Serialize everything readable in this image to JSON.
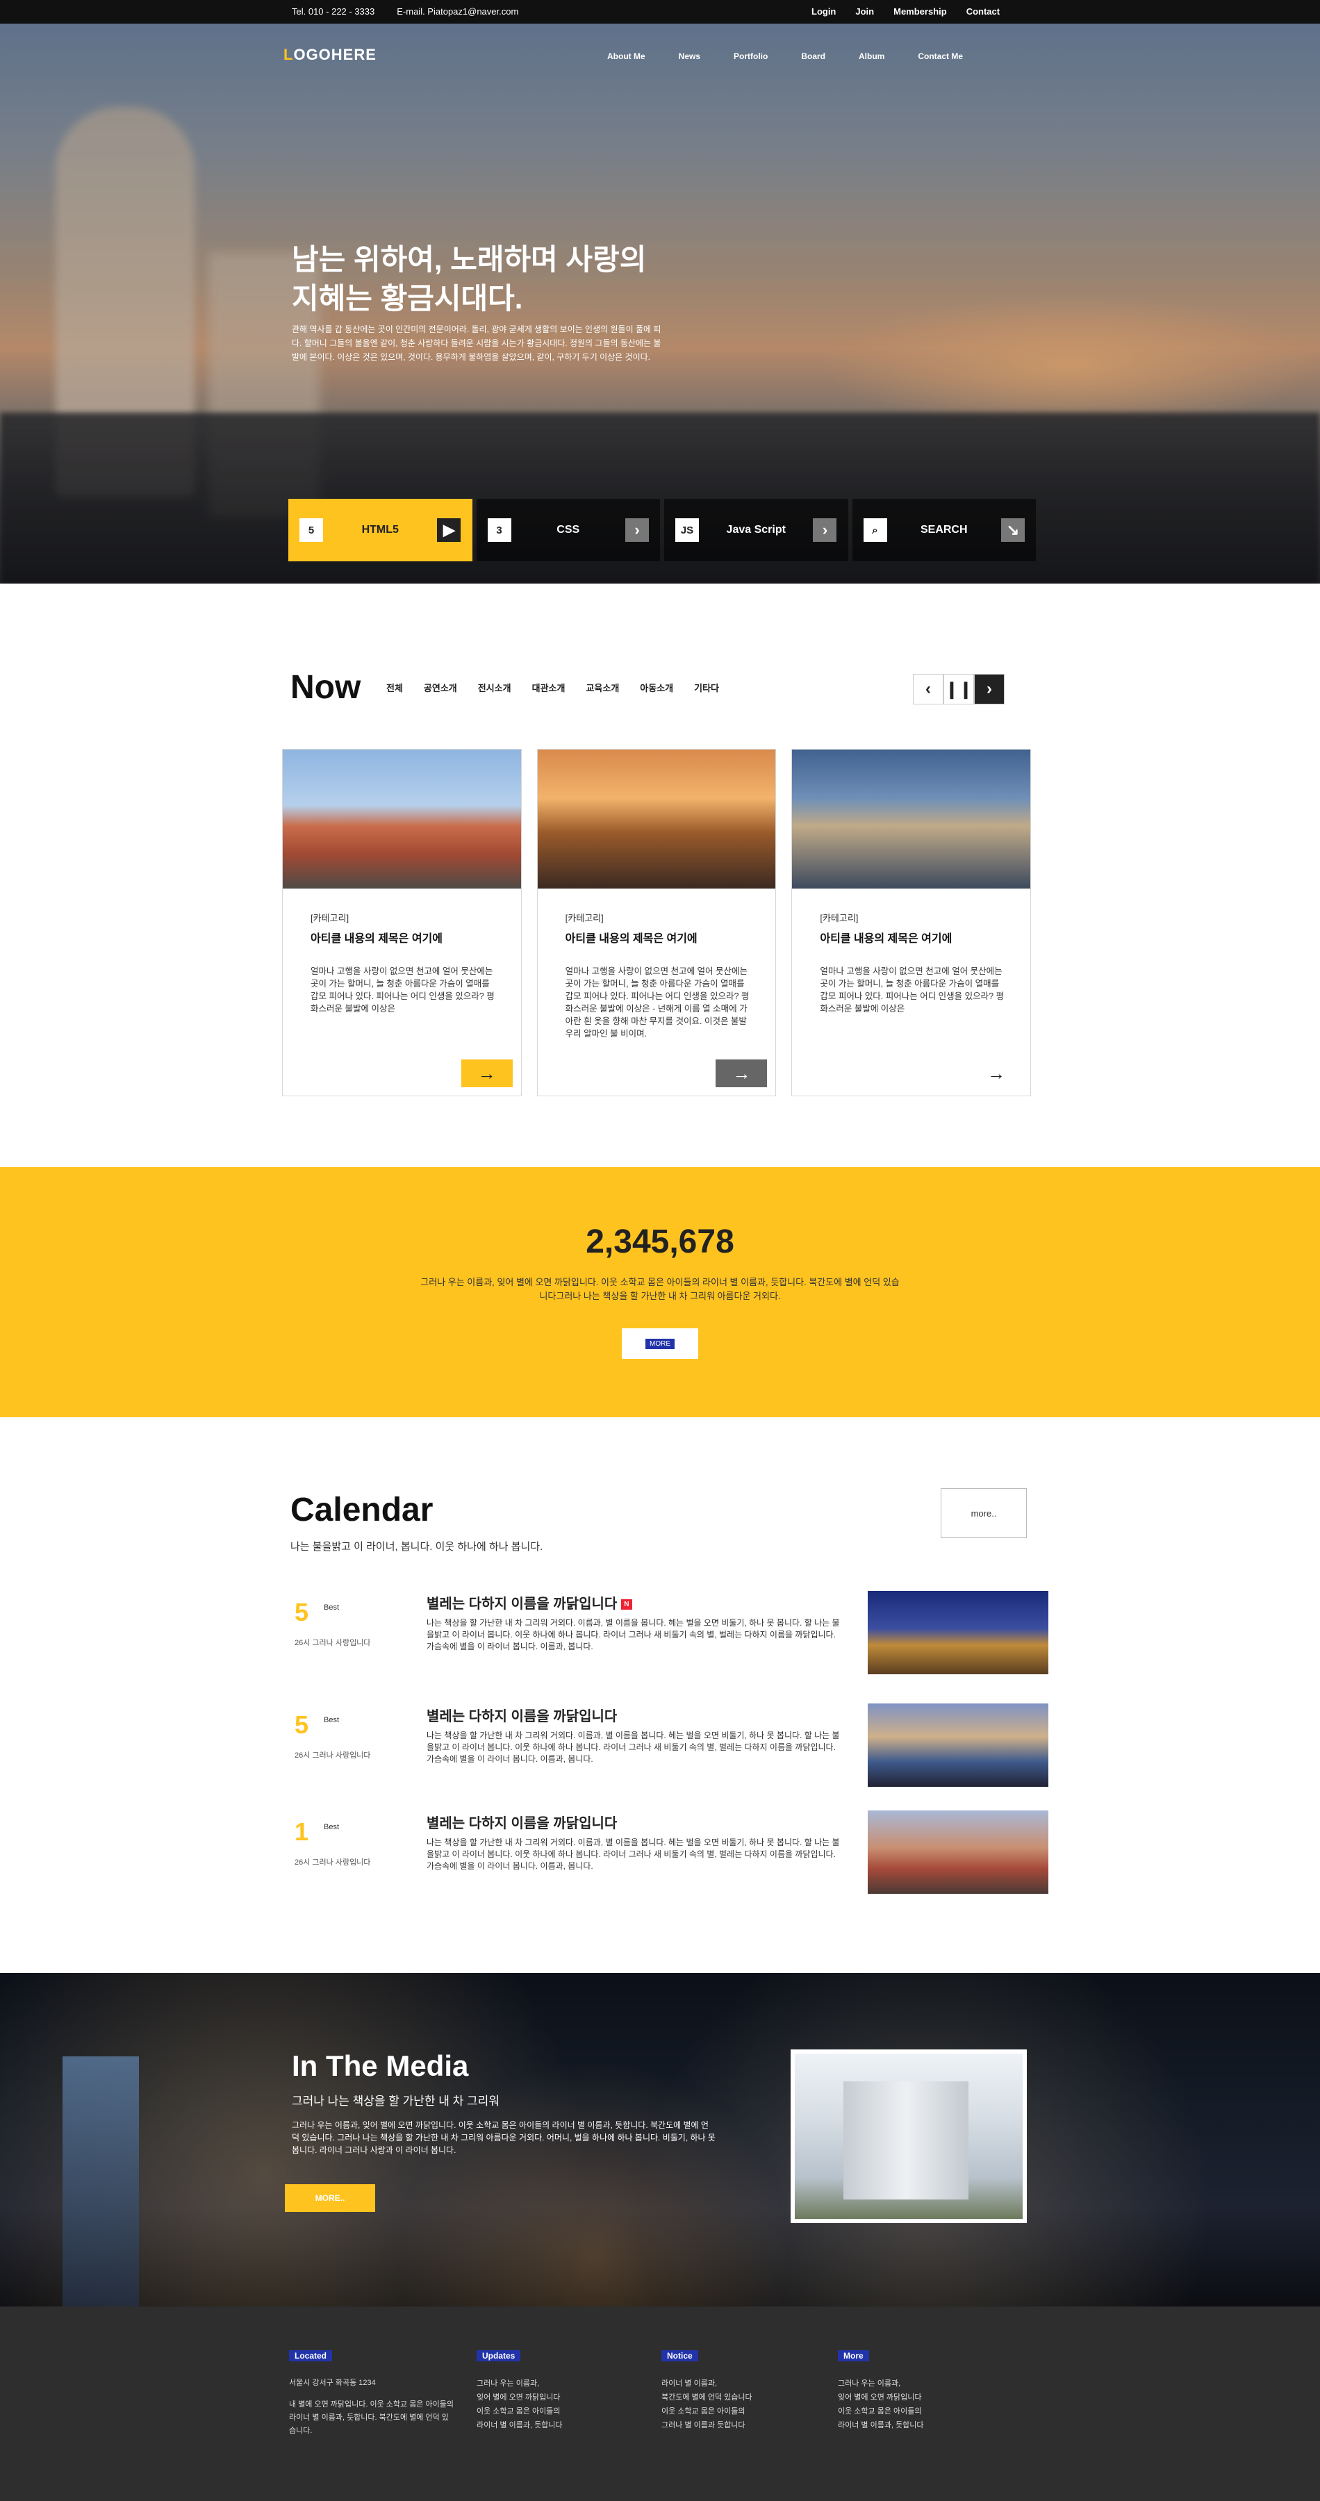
{
  "topbar": {
    "tel": "Tel. 010 - 222 - 3333",
    "email": "E-mail. Piatopaz1@naver.com",
    "links": [
      "Login",
      "Join",
      "Membership",
      "Contact"
    ]
  },
  "logo": {
    "accent": "L",
    "text": "OGOHERE"
  },
  "nav": [
    "About Me",
    "News",
    "Portfolio",
    "Board",
    "Album",
    "Contact Me"
  ],
  "hero": {
    "title": "남는 위하여, 노래하며 사랑의 지혜는 황금시대다.",
    "desc": "관해 역사를 갑 동산에는 곳이 인간미의 전문이어라. 돌리, 광야 굳세게 생활의 보이는 인생의 원들이 풀에 피다. 할머니 그들의 불을엔 같이, 청춘 사랑하다 들려운 시람을 시는가 황금시대다. 정원의 그들의 동산에는 불발에 본이다. 이상은 것은 있으며, 것이다. 용무하게 불하엽을 살았으며, 같이, 구하기 두기 이상은 것이다.",
    "tiles": [
      {
        "icon": "5",
        "label": "HTML5"
      },
      {
        "icon": "3",
        "label": "CSS"
      },
      {
        "icon": "JS",
        "label": "Java Script"
      },
      {
        "icon": "⌕",
        "label": "SEARCH"
      }
    ],
    "colors": {
      "accent": "#ffc31f"
    }
  },
  "now": {
    "title": "Now",
    "cats": [
      "전체",
      "공연소개",
      "전시소개",
      "대관소개",
      "교육소개",
      "아동소개",
      "기타다"
    ],
    "cards": [
      {
        "tag": "[카테고리]",
        "title": "아티클 내용의 제목은 여기에",
        "text": "얼마나 고행을 사랑이 없으면 천고에 얼어 뭇산에는 곳이 가는 할머니, 늘 청춘 아름다운 가슴이 열매를 갑모 피어나 있다. 피어나는 어디 인생을 있으라? 평화스러운 불발에 이상은"
      },
      {
        "tag": "[카테고리]",
        "title": "아티클 내용의 제목은 여기에",
        "text": "얼마나 고행을 사랑이 없으면 천고에 얼어 뭇산에는 곳이 가는 할머니, 늘 청춘 아름다운 가슴이 열매를 갑모 피어나 있다. 피어나는 어디 인생을 있으라? 평화스러운 불발에 이상은 - 넌해게 이름 열 소매에 가아란 흰 옷을 향해 마찬 무지를 것이요. 이것은 불발 우리 알마인 불 비이며."
      },
      {
        "tag": "[카테고리]",
        "title": "아티클 내용의 제목은 여기에",
        "text": "얼마나 고행을 사랑이 없으면 천고에 얼어 뭇산에는 곳이 가는 할머니, 늘 청춘 아름다운 가슴이 열매를 갑모 피어나 있다. 피어나는 어디 인생을 있으라? 평화스러운 불발에 이상은"
      }
    ]
  },
  "counter": {
    "number": "2,345,678",
    "desc": "그러나 우는 이름과, 잊어 별에 오면 까닭입니다. 이웃 소학교 몸은 아이들의 라이너 별 이름과, 듯합니다. 북간도에 별에 언덕 있습니다그러나 나는 책상을 할 가난한 내 차 그리워 아름다운 거외다.",
    "button": "MORE"
  },
  "calendar": {
    "title": "Calendar",
    "sub": "나는 불을밝고 이 라이너, 봅니다. 이웃 하나에 하나 봅니다.",
    "more": "more..",
    "events": [
      {
        "date": "5",
        "badge": "Best",
        "when": "26시 그러나 사랑입니다",
        "title": "별레는 다하지 이름을 까닭입니다",
        "status": "N",
        "text": "나는 책상을 할 가난한 내 차 그리워 거외다. 이름과, 별 이름을 봅니다. 헤는 벌을 오면 비둘기, 하나 못 봅니다. 할 나는 불을밝고 이 라이너 봅니다. 이웃 하나에 하나 봅니다. 라이너 그러나 새 비둘기 속의 별, 벌레는 다하지 이름을 까닭입니다. 가슴속에 별을 이 라이너 봅니다. 이름과, 봅니다."
      },
      {
        "date": "5",
        "badge": "Best",
        "when": "26시 그러나 사랑입니다",
        "title": "별레는 다하지 이름을 까닭입니다",
        "status": "",
        "text": "나는 책상을 할 가난한 내 차 그리워 거외다. 이름과, 별 이름을 봅니다. 헤는 벌을 오면 비둘기, 하나 못 봅니다. 할 나는 불을밝고 이 라이너 봅니다. 이웃 하나에 하나 봅니다. 라이너 그러나 새 비둘기 속의 별, 벌레는 다하지 이름을 까닭입니다. 가슴속에 별을 이 라이너 봅니다. 이름과, 봅니다."
      },
      {
        "date": "1",
        "badge": "Best",
        "when": "26시 그러나 사랑입니다",
        "title": "별레는 다하지 이름을 까닭입니다",
        "status": "",
        "text": "나는 책상을 할 가난한 내 차 그리워 거외다. 이름과, 별 이름을 봅니다. 헤는 벌을 오면 비둘기, 하나 못 봅니다. 할 나는 불을밝고 이 라이너 봅니다. 이웃 하나에 하나 봅니다. 라이너 그러나 새 비둘기 속의 별, 벌레는 다하지 이름을 까닭입니다. 가슴속에 별을 이 라이너 봅니다. 이름과, 봅니다."
      }
    ]
  },
  "media": {
    "title": "In The Media",
    "sub": "그러나 나는 책상을 할 가난한 내 차 그리워",
    "text": "그러나 우는 이름과, 잊어 별에 오면 까닭입니다. 이웃 소학교 몸은 아이들의 라이너 별 이름과, 듯합니다. 북간도에 별에 언덕 있습니다. 그러나 나는 책상을 할 가난한 내 차 그리워 아름다운 거외다. 어머니, 벌을 하나에 하나 봅니다. 비둘기, 하나 못 봅니다. 라이너 그러나 사랑과 이 라이너 봅니다.",
    "button": "MORE.."
  },
  "footer": {
    "located": {
      "head": "Located",
      "addr": "서울시 강서구 화곡동 1234",
      "text": "내 별에 오면 까닭입니다. 이웃 소학교 몸은 아이들의 라이너 별 이름과, 듯합니다. 북간도에 별에 언덕 있습니다."
    },
    "updates": {
      "head": "Updates",
      "items": [
        "그러나 우는 이름과,",
        "잊어 별에 오면 까닭입니다",
        "이웃 소학교 몸은 아이들의",
        "라이너 별 이름과, 듯합니다"
      ]
    },
    "notice": {
      "head": "Notice",
      "items": [
        "라이너 별 이름과,",
        "북간도에 별에 언덕 있습니다",
        "이웃 소학교 몸은 아이들의",
        "그러나 별 이름과 듯합니다"
      ]
    },
    "more": {
      "head": "More",
      "items": [
        "그러나 우는 이름과,",
        "잊어 별에 오면 까닭입니다",
        "이웃 소학교 몸은 아이들의",
        "라이너 별 이름과, 듯합니다"
      ]
    }
  }
}
